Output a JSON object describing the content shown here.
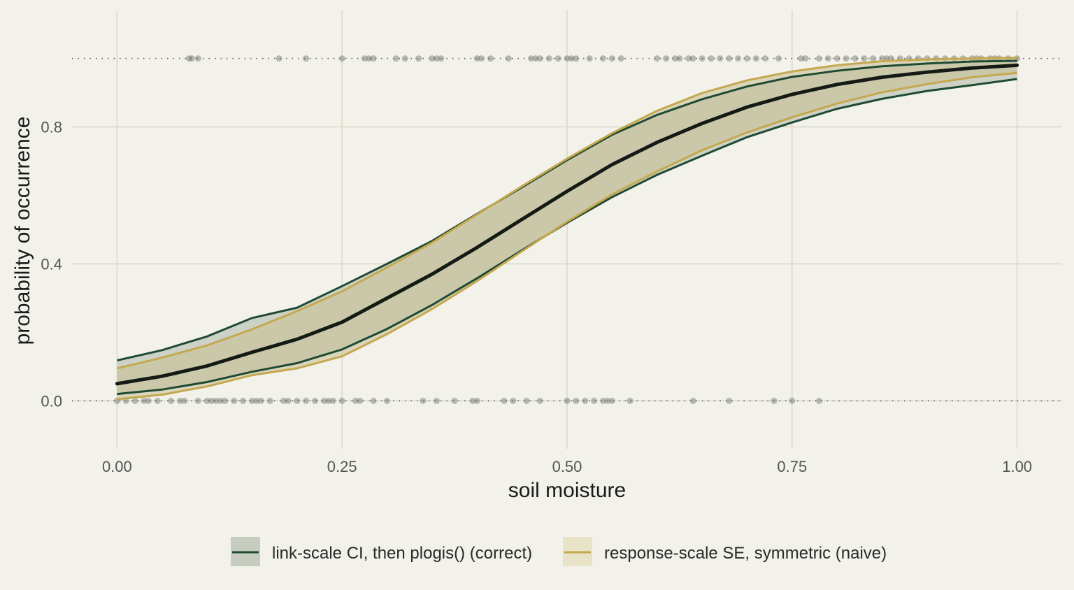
{
  "chart_data": {
    "type": "line",
    "title": "",
    "xlabel": "soil moisture",
    "ylabel": "probability of occurrence",
    "xlim": [
      -0.05,
      1.05
    ],
    "ylim": [
      -0.14,
      1.14
    ],
    "x_ticks": [
      0,
      0.25,
      0.5,
      0.75,
      1
    ],
    "x_tick_labels": [
      "0.00",
      "0.25",
      "0.50",
      "0.75",
      "1.00"
    ],
    "y_ticks": [
      0,
      0.4,
      0.8
    ],
    "y_tick_labels": [
      "0.0",
      "0.4",
      "0.8"
    ],
    "grid": true,
    "reference_lines": [
      0,
      1
    ],
    "legend_position": "bottom",
    "colors": {
      "background": "#f2f1ea",
      "grid": "#d8d8c8",
      "fit_line": "#141a14",
      "link_scale": "#1f4a33",
      "link_scale_fill": "#c7ccc0",
      "response_scale": "#c4a84f",
      "response_scale_fill": "#e8e2c6",
      "overlap_fill": "#c5c4a5",
      "points": "#6b716b"
    },
    "fit": {
      "x": [
        0.0,
        0.05,
        0.1,
        0.15,
        0.2,
        0.25,
        0.3,
        0.35,
        0.4,
        0.45,
        0.5,
        0.55,
        0.6,
        0.65,
        0.7,
        0.75,
        0.8,
        0.85,
        0.9,
        0.95,
        1.0
      ],
      "y": [
        0.05,
        0.072,
        0.102,
        0.142,
        0.18,
        0.23,
        0.3,
        0.37,
        0.448,
        0.53,
        0.612,
        0.69,
        0.755,
        0.81,
        0.858,
        0.895,
        0.924,
        0.945,
        0.96,
        0.972,
        0.98
      ]
    },
    "series": [
      {
        "name": "link-scale CI, then plogis() (correct)",
        "x": [
          0.0,
          0.05,
          0.1,
          0.15,
          0.2,
          0.25,
          0.3,
          0.35,
          0.4,
          0.45,
          0.5,
          0.55,
          0.6,
          0.65,
          0.7,
          0.75,
          0.8,
          0.85,
          0.9,
          0.95,
          1.0
        ],
        "lower": [
          0.02,
          0.033,
          0.055,
          0.085,
          0.11,
          0.15,
          0.21,
          0.28,
          0.358,
          0.44,
          0.52,
          0.595,
          0.66,
          0.716,
          0.77,
          0.813,
          0.853,
          0.882,
          0.905,
          0.922,
          0.94
        ],
        "upper": [
          0.118,
          0.148,
          0.188,
          0.242,
          0.272,
          0.335,
          0.4,
          0.467,
          0.546,
          0.624,
          0.703,
          0.777,
          0.835,
          0.881,
          0.918,
          0.946,
          0.964,
          0.977,
          0.985,
          0.991,
          0.993
        ]
      },
      {
        "name": "response-scale SE, symmetric (naive)",
        "x": [
          0.0,
          0.05,
          0.1,
          0.15,
          0.2,
          0.25,
          0.3,
          0.35,
          0.4,
          0.45,
          0.5,
          0.55,
          0.6,
          0.65,
          0.7,
          0.75,
          0.8,
          0.85,
          0.9,
          0.95,
          1.0
        ],
        "lower": [
          0.005,
          0.018,
          0.042,
          0.075,
          0.095,
          0.13,
          0.195,
          0.268,
          0.35,
          0.437,
          0.523,
          0.603,
          0.67,
          0.732,
          0.784,
          0.828,
          0.868,
          0.901,
          0.925,
          0.945,
          0.958
        ],
        "upper": [
          0.095,
          0.126,
          0.162,
          0.209,
          0.262,
          0.32,
          0.39,
          0.462,
          0.544,
          0.627,
          0.707,
          0.782,
          0.847,
          0.899,
          0.936,
          0.962,
          0.98,
          0.992,
          0.997,
          1.0,
          1.002
        ]
      }
    ],
    "observations_y1": [
      0.08,
      0.083,
      0.09,
      0.18,
      0.21,
      0.25,
      0.275,
      0.28,
      0.285,
      0.31,
      0.32,
      0.335,
      0.35,
      0.355,
      0.36,
      0.4,
      0.405,
      0.415,
      0.435,
      0.46,
      0.465,
      0.47,
      0.48,
      0.49,
      0.5,
      0.505,
      0.51,
      0.525,
      0.54,
      0.55,
      0.56,
      0.6,
      0.61,
      0.62,
      0.625,
      0.635,
      0.64,
      0.65,
      0.66,
      0.67,
      0.68,
      0.69,
      0.7,
      0.71,
      0.72,
      0.735,
      0.76,
      0.765,
      0.78,
      0.79,
      0.8,
      0.81,
      0.82,
      0.83,
      0.84,
      0.85,
      0.855,
      0.86,
      0.87,
      0.88,
      0.89,
      0.9,
      0.91,
      0.92,
      0.93,
      0.94,
      0.95,
      0.955,
      0.96,
      0.97,
      0.975,
      0.98,
      0.99,
      1.0
    ],
    "observations_y0": [
      0.0,
      0.01,
      0.02,
      0.03,
      0.035,
      0.045,
      0.06,
      0.07,
      0.075,
      0.09,
      0.1,
      0.105,
      0.11,
      0.115,
      0.12,
      0.13,
      0.14,
      0.15,
      0.155,
      0.16,
      0.17,
      0.185,
      0.19,
      0.2,
      0.21,
      0.22,
      0.23,
      0.235,
      0.24,
      0.25,
      0.265,
      0.27,
      0.285,
      0.3,
      0.34,
      0.355,
      0.375,
      0.395,
      0.4,
      0.43,
      0.44,
      0.455,
      0.47,
      0.5,
      0.51,
      0.52,
      0.53,
      0.54,
      0.545,
      0.55,
      0.57,
      0.64,
      0.68,
      0.73,
      0.75,
      0.78
    ]
  }
}
